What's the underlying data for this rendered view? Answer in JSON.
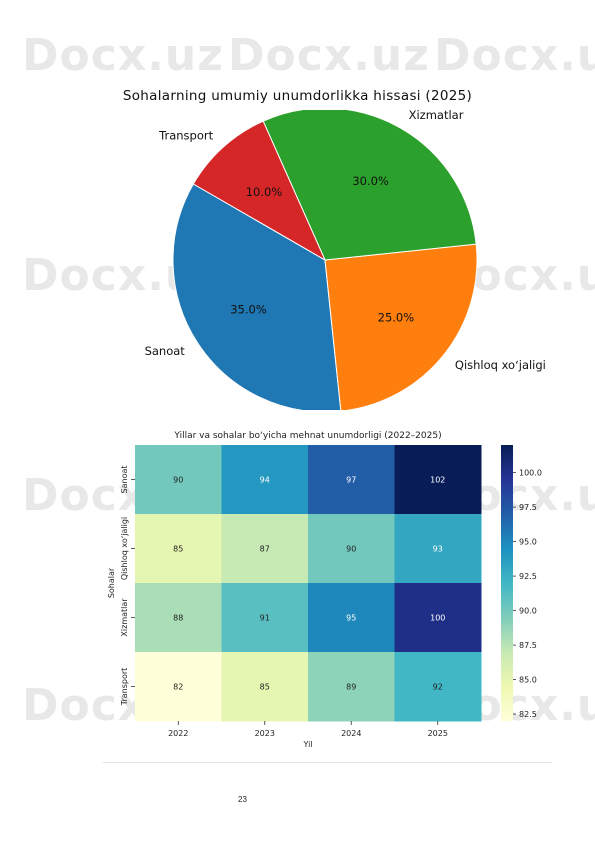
{
  "watermark": {
    "text": "Docx.uz"
  },
  "page_number": "23",
  "chart_data": [
    {
      "type": "pie",
      "title": "Sohalarning umumiy unumdorlikka hissasi (2025)",
      "slices": [
        {
          "label": "Sanoat",
          "value": 35,
          "pct_label": "35.0%",
          "color": "#1f77b4"
        },
        {
          "label": "Qishloq xoʻjaligi",
          "value": 25,
          "pct_label": "25.0%",
          "color": "#ff7f0e"
        },
        {
          "label": "Xizmatlar",
          "value": 30,
          "pct_label": "30.0%",
          "color": "#2ca02c"
        },
        {
          "label": "Transport",
          "value": 10,
          "pct_label": "10.0%",
          "color": "#d62728"
        }
      ]
    },
    {
      "type": "heatmap",
      "title": "Yillar va sohalar bo‘yicha mehnat unumdorligi (2022–2025)",
      "xlabel": "Yil",
      "ylabel": "Sohalar",
      "x": [
        "2022",
        "2023",
        "2024",
        "2025"
      ],
      "y": [
        "Sanoat",
        "Qishloq xoʻjaligi",
        "Xizmatlar",
        "Transport"
      ],
      "values": [
        [
          90,
          94,
          97,
          102
        ],
        [
          85,
          87,
          90,
          93
        ],
        [
          88,
          91,
          95,
          100
        ],
        [
          82,
          85,
          89,
          92
        ]
      ],
      "colorbar": {
        "min": 82,
        "max": 102,
        "ticks": [
          "82.5",
          "85.0",
          "87.5",
          "90.0",
          "92.5",
          "95.0",
          "97.5",
          "100.0"
        ],
        "colormap": "YlGnBu"
      }
    }
  ]
}
